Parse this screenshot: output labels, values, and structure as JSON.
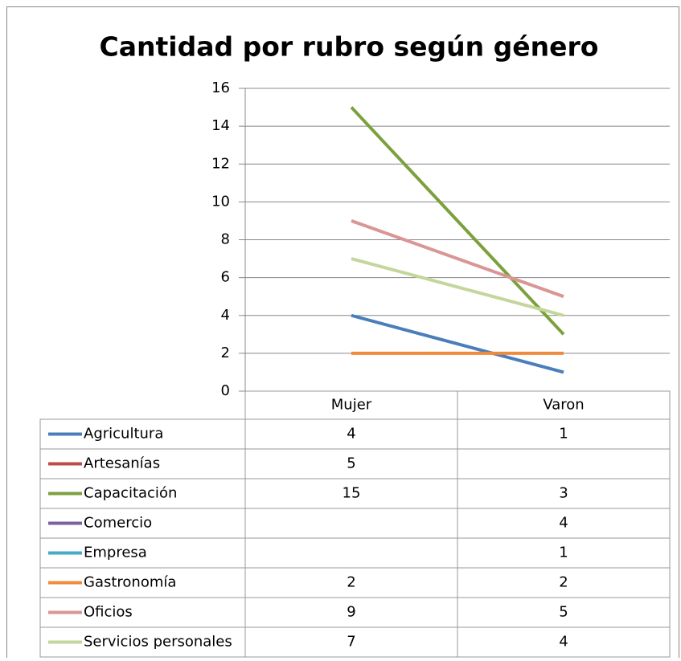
{
  "chart_data": {
    "type": "line",
    "title": "Cantidad por rubro según género",
    "categories": [
      "Mujer",
      "Varon"
    ],
    "series": [
      {
        "name": "Agricultura",
        "color": "#4a7ebb",
        "values": [
          4,
          1
        ]
      },
      {
        "name": "Artesanías",
        "color": "#be4b48",
        "values": [
          5,
          null
        ]
      },
      {
        "name": "Capacitación",
        "color": "#7ba13d",
        "values": [
          15,
          3
        ]
      },
      {
        "name": "Comercio",
        "color": "#7d60a0",
        "values": [
          null,
          4
        ]
      },
      {
        "name": "Empresa",
        "color": "#46aac5",
        "values": [
          null,
          1
        ]
      },
      {
        "name": "Gastronomía",
        "color": "#f08a3c",
        "values": [
          2,
          2
        ]
      },
      {
        "name": "Oficios",
        "color": "#d99694",
        "values": [
          9,
          5
        ]
      },
      {
        "name": "Servicios personales",
        "color": "#c3d69b",
        "values": [
          7,
          4
        ]
      }
    ],
    "ylim": [
      0,
      16
    ],
    "yticks": [
      0,
      2,
      4,
      6,
      8,
      10,
      12,
      14,
      16
    ],
    "grid": true,
    "data_table": true
  }
}
